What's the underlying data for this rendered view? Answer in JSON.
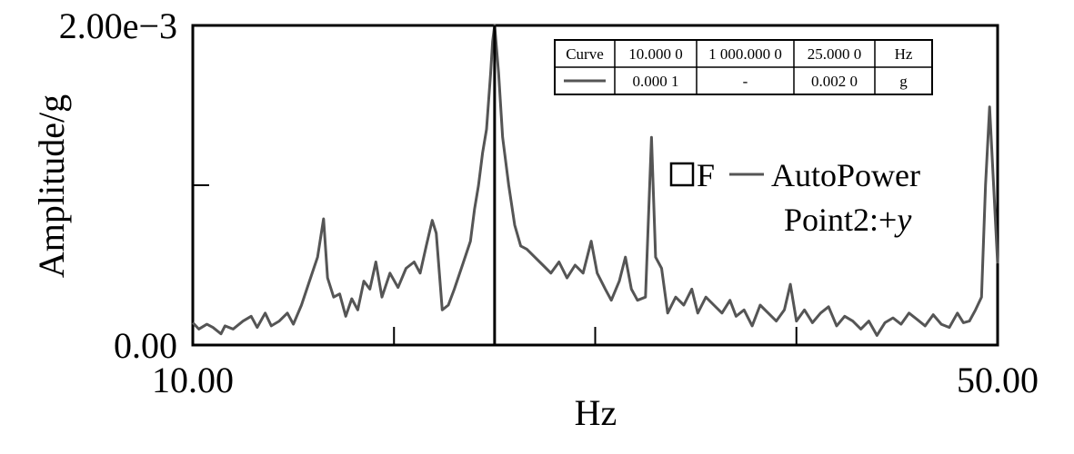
{
  "chart_data": {
    "type": "line",
    "x_label": "Hz",
    "y_label": "Amplitude/g",
    "xlim": [
      10,
      50
    ],
    "ylim": [
      0,
      0.002
    ],
    "xticks": [
      {
        "value": 10,
        "label": "10.00"
      },
      {
        "value": 50,
        "label": "50.00"
      }
    ],
    "xminorticks": [
      20,
      30,
      40
    ],
    "yticks": [
      {
        "value": 0,
        "label": "0.00"
      },
      {
        "value": 0.002,
        "label": "2.00e−3"
      }
    ],
    "yminorticks": [
      0.001
    ],
    "cursor": 25,
    "legend": {
      "box": "F",
      "line1": "AutoPower",
      "line2_prefix": "Point2:+",
      "line2_italic": "y"
    },
    "table": {
      "header": [
        "Curve",
        "10.000 0",
        "1 000.000 0",
        "25.000 0",
        "Hz"
      ],
      "row": [
        "0.000 1",
        "-",
        "0.002 0",
        "g"
      ]
    },
    "series": [
      {
        "name": "AutoPower",
        "color": "#555555",
        "x": [
          10.0,
          10.3,
          10.7,
          11.0,
          11.4,
          11.6,
          12.0,
          12.5,
          12.9,
          13.2,
          13.6,
          13.9,
          14.3,
          14.7,
          15.0,
          15.4,
          15.8,
          16.2,
          16.5,
          16.7,
          17.0,
          17.3,
          17.6,
          17.9,
          18.2,
          18.5,
          18.8,
          19.1,
          19.4,
          19.8,
          20.2,
          20.6,
          21.0,
          21.3,
          21.6,
          21.9,
          22.1,
          22.4,
          22.7,
          23.0,
          23.4,
          23.8,
          24.0,
          24.2,
          24.4,
          24.6,
          24.8,
          24.9,
          25.0,
          25.2,
          25.4,
          25.7,
          26.0,
          26.3,
          26.6,
          27.0,
          27.4,
          27.8,
          28.2,
          28.6,
          29.0,
          29.4,
          29.8,
          30.1,
          30.5,
          30.8,
          31.2,
          31.5,
          31.8,
          32.1,
          32.5,
          32.8,
          33.0,
          33.3,
          33.6,
          34.0,
          34.4,
          34.8,
          35.1,
          35.5,
          35.9,
          36.3,
          36.7,
          37.0,
          37.4,
          37.8,
          38.2,
          38.6,
          39.0,
          39.4,
          39.7,
          40.0,
          40.4,
          40.8,
          41.2,
          41.6,
          42.0,
          42.4,
          42.8,
          43.2,
          43.6,
          44.0,
          44.4,
          44.8,
          45.2,
          45.6,
          46.0,
          46.4,
          46.8,
          47.2,
          47.6,
          48.0,
          48.3,
          48.6,
          48.9,
          49.2,
          49.4,
          49.6,
          49.8,
          50.0
        ],
        "values": [
          0.00014,
          0.0001,
          0.00013,
          0.00011,
          7e-05,
          0.00012,
          0.0001,
          0.00015,
          0.00018,
          0.00011,
          0.0002,
          0.00012,
          0.00015,
          0.0002,
          0.00013,
          0.00025,
          0.0004,
          0.00055,
          0.00079,
          0.00042,
          0.0003,
          0.00032,
          0.00018,
          0.00029,
          0.00022,
          0.0004,
          0.00035,
          0.00052,
          0.0003,
          0.00045,
          0.00036,
          0.00048,
          0.00052,
          0.00045,
          0.00062,
          0.00078,
          0.0007,
          0.00022,
          0.00025,
          0.00035,
          0.0005,
          0.00065,
          0.00085,
          0.001,
          0.0012,
          0.00135,
          0.0017,
          0.0019,
          0.002,
          0.0017,
          0.0013,
          0.001,
          0.00075,
          0.00062,
          0.0006,
          0.00055,
          0.0005,
          0.00045,
          0.00052,
          0.00042,
          0.0005,
          0.00045,
          0.00065,
          0.00045,
          0.00035,
          0.00028,
          0.0004,
          0.00055,
          0.00035,
          0.00028,
          0.0003,
          0.0013,
          0.00055,
          0.00048,
          0.0002,
          0.0003,
          0.00025,
          0.00035,
          0.0002,
          0.0003,
          0.00025,
          0.0002,
          0.00028,
          0.00018,
          0.00022,
          0.00012,
          0.00025,
          0.0002,
          0.00015,
          0.00022,
          0.00038,
          0.00015,
          0.00022,
          0.00014,
          0.0002,
          0.00024,
          0.00012,
          0.00018,
          0.00015,
          0.0001,
          0.00015,
          6e-05,
          0.00014,
          0.00017,
          0.00013,
          0.0002,
          0.00016,
          0.00012,
          0.00019,
          0.00013,
          0.00011,
          0.0002,
          0.00014,
          0.00015,
          0.00022,
          0.0003,
          0.001,
          0.00149,
          0.001,
          0.00051
        ]
      }
    ]
  }
}
